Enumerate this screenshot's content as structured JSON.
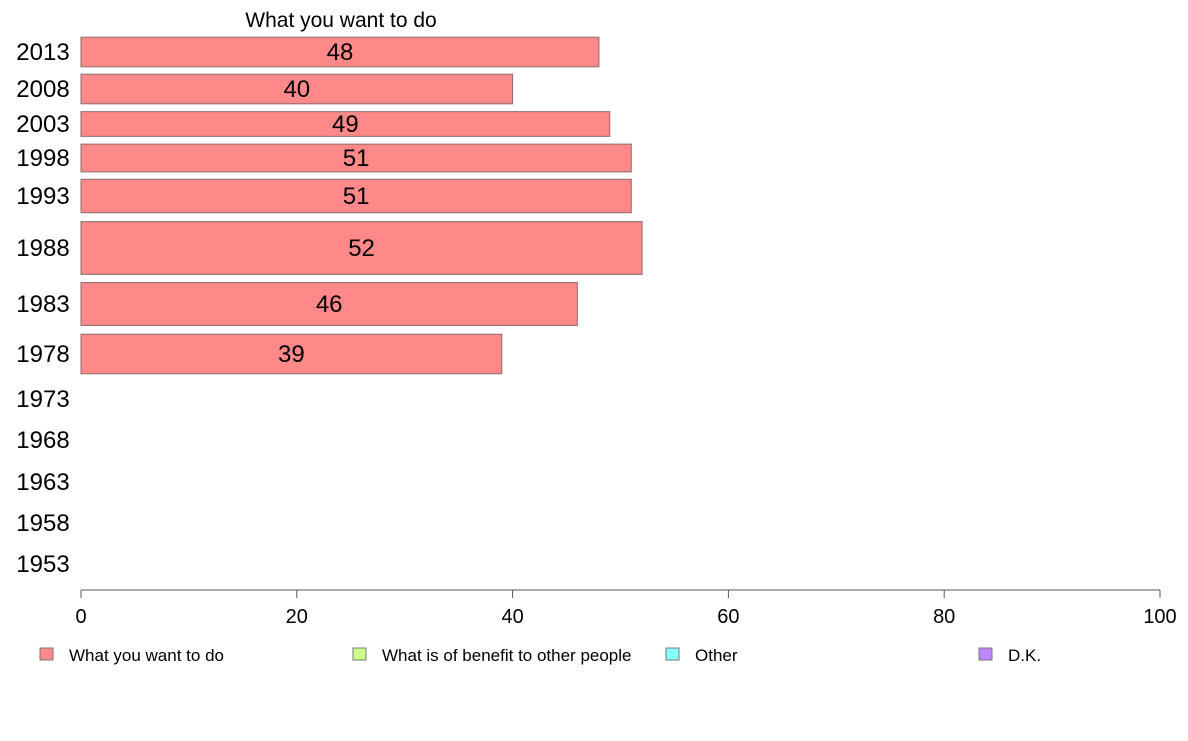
{
  "chart_data": {
    "type": "bar",
    "orientation": "horizontal",
    "title": "What you want to do",
    "xlabel": "",
    "ylabel": "",
    "xlim": [
      0,
      100
    ],
    "x_ticks": [
      0,
      20,
      40,
      60,
      80,
      100
    ],
    "grid": false,
    "legend_position": "bottom",
    "categories": [
      "2013",
      "2008",
      "2003",
      "1998",
      "1993",
      "1988",
      "1983",
      "1978",
      "1973",
      "1968",
      "1963",
      "1958",
      "1953"
    ],
    "bar_thickness_relative": [
      0.78,
      0.78,
      0.65,
      0.73,
      0.88,
      1.39,
      1.13,
      1.04,
      null,
      null,
      null,
      null,
      null
    ],
    "series": [
      {
        "name": "What you want to do",
        "color": "#ff8888",
        "values": [
          48,
          40,
          49,
          51,
          51,
          52,
          46,
          39,
          null,
          null,
          null,
          null,
          null
        ]
      }
    ],
    "legend": [
      {
        "name": "What you want to do",
        "color": "#ff8888"
      },
      {
        "name": "What is of benefit to other people",
        "color": "#ccff88"
      },
      {
        "name": "Other",
        "color": "#88ffff"
      },
      {
        "name": "D.K.",
        "color": "#bb88ff"
      }
    ]
  }
}
